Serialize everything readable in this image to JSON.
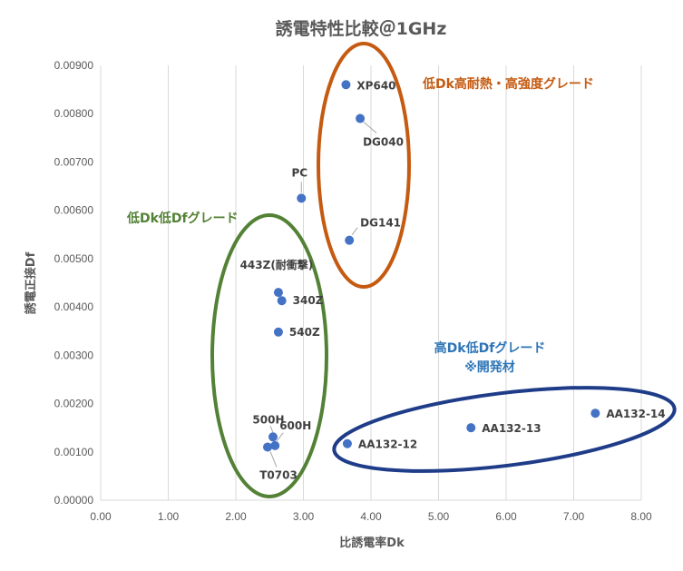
{
  "chart_data": {
    "type": "scatter",
    "title": "誘電特性比較＠1GHz",
    "xlabel": "比誘電率Dk",
    "ylabel": "誘電正接Df",
    "xlim": [
      0,
      8
    ],
    "ylim": [
      0,
      0.009
    ],
    "x_ticks": [
      "0.00",
      "1.00",
      "2.00",
      "3.00",
      "4.00",
      "5.00",
      "6.00",
      "7.00",
      "8.00"
    ],
    "y_ticks": [
      "0.00000",
      "0.00100",
      "0.00200",
      "0.00300",
      "0.00400",
      "0.00500",
      "0.00600",
      "0.00700",
      "0.00800",
      "0.00900"
    ],
    "grid": {
      "vertical": true,
      "horizontal": false
    },
    "marker_color": "#4472C4",
    "points": [
      {
        "label": "XP640",
        "x": 3.63,
        "y": 0.0086
      },
      {
        "label": "DG040",
        "x": 3.84,
        "y": 0.0079
      },
      {
        "label": "PC",
        "x": 2.97,
        "y": 0.00625
      },
      {
        "label": "DG141",
        "x": 3.68,
        "y": 0.00538
      },
      {
        "label": "443Z(耐衝撃)",
        "x": 2.63,
        "y": 0.0043
      },
      {
        "label": "340Z",
        "x": 2.68,
        "y": 0.00413
      },
      {
        "label": "540Z",
        "x": 2.63,
        "y": 0.00348
      },
      {
        "label": "500H",
        "x": 2.55,
        "y": 0.00131
      },
      {
        "label": "600H",
        "x": 2.58,
        "y": 0.00113
      },
      {
        "label": "T0703",
        "x": 2.47,
        "y": 0.0011
      },
      {
        "label": "AA132-12",
        "x": 3.65,
        "y": 0.00117
      },
      {
        "label": "AA132-13",
        "x": 5.48,
        "y": 0.0015
      },
      {
        "label": "AA132-14",
        "x": 7.32,
        "y": 0.0018
      }
    ],
    "groups": [
      {
        "label": "低Dk高耐熱・高強度グレード",
        "color": "#C55A11"
      },
      {
        "label": "低Dk低Dfグレード",
        "color": "#538135"
      },
      {
        "label": "高Dk低Dfグレード",
        "label2": "※開発材",
        "color": "#2E75B6",
        "ellipse_color": "#1F3C88"
      }
    ]
  }
}
